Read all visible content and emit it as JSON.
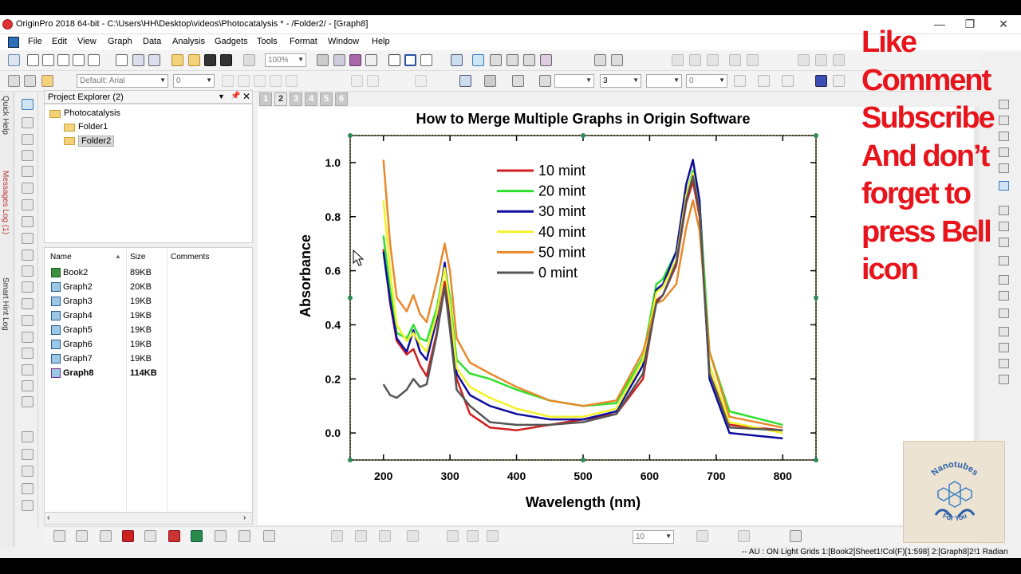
{
  "window": {
    "title": "OriginPro 2018 64-bit - C:\\Users\\HH\\Desktop\\videos\\Photocatalysis * - /Folder2/ - [Graph8]",
    "minimize_glyph": "—",
    "restore_glyph": "❐",
    "close_glyph": "✕"
  },
  "menu": [
    "File",
    "Edit",
    "View",
    "Graph",
    "Data",
    "Analysis",
    "Gadgets",
    "Tools",
    "Format",
    "Window",
    "Help"
  ],
  "toolbar": {
    "zoom_value": "100%",
    "font_name": "Default: Arial",
    "font_size": "0",
    "line_width": "3",
    "line_extra": "0",
    "bottom_size": "10"
  },
  "left_tabs": [
    "Quick Help",
    "Messages Log (1)",
    "Smart Hint Log"
  ],
  "project_explorer": {
    "title": "Project Explorer (2)",
    "root": "Photocatalysis",
    "folders": [
      "Folder1",
      "Folder2"
    ],
    "selected_folder": "Folder2",
    "columns": {
      "name": "Name",
      "size": "Size",
      "comments": "Comments"
    },
    "files": [
      {
        "name": "Book2",
        "size": "89KB",
        "icon": "workbook-icon"
      },
      {
        "name": "Graph2",
        "size": "20KB",
        "icon": "graph-icon"
      },
      {
        "name": "Graph3",
        "size": "19KB",
        "icon": "graph-icon"
      },
      {
        "name": "Graph4",
        "size": "19KB",
        "icon": "graph-icon"
      },
      {
        "name": "Graph5",
        "size": "19KB",
        "icon": "graph-icon"
      },
      {
        "name": "Graph6",
        "size": "19KB",
        "icon": "graph-icon"
      },
      {
        "name": "Graph7",
        "size": "19KB",
        "icon": "graph-icon"
      },
      {
        "name": "Graph8",
        "size": "114KB",
        "icon": "graph-icon",
        "active": true
      }
    ]
  },
  "page_tabs": [
    "1",
    "2",
    "3",
    "4",
    "5",
    "6"
  ],
  "active_page_tab": "2",
  "chart_data": {
    "type": "line",
    "title": "How to Merge Multiple Graphs in Origin Software",
    "xlabel": "Wavelength (nm)",
    "ylabel": "Absorbance",
    "xlim": [
      150,
      850
    ],
    "ylim": [
      -0.1,
      1.1
    ],
    "xticks": [
      200,
      300,
      400,
      500,
      600,
      700,
      800
    ],
    "yticks": [
      0.0,
      0.2,
      0.4,
      0.6,
      0.8,
      1.0
    ],
    "legend_position": "top-center",
    "series": [
      {
        "name": "10 mint",
        "color": "#d21f1f",
        "x": [
          200,
          210,
          220,
          235,
          245,
          255,
          265,
          280,
          292,
          300,
          310,
          330,
          360,
          400,
          450,
          500,
          550,
          590,
          610,
          620,
          640,
          655,
          665,
          675,
          690,
          720,
          800
        ],
        "y": [
          0.68,
          0.48,
          0.34,
          0.29,
          0.31,
          0.25,
          0.21,
          0.37,
          0.56,
          0.42,
          0.2,
          0.07,
          0.02,
          0.01,
          0.03,
          0.05,
          0.07,
          0.2,
          0.49,
          0.51,
          0.62,
          0.85,
          0.93,
          0.8,
          0.22,
          0.03,
          0.01
        ]
      },
      {
        "name": "20 mint",
        "color": "#2ee02e",
        "x": [
          200,
          210,
          220,
          235,
          245,
          255,
          265,
          280,
          292,
          300,
          310,
          330,
          360,
          400,
          450,
          500,
          550,
          590,
          610,
          620,
          640,
          655,
          665,
          675,
          690,
          720,
          800
        ],
        "y": [
          0.73,
          0.53,
          0.37,
          0.35,
          0.4,
          0.35,
          0.34,
          0.46,
          0.62,
          0.5,
          0.27,
          0.22,
          0.2,
          0.16,
          0.12,
          0.1,
          0.11,
          0.28,
          0.55,
          0.57,
          0.67,
          0.88,
          0.97,
          0.85,
          0.3,
          0.08,
          0.03
        ]
      },
      {
        "name": "30 mint",
        "color": "#0d0d9e",
        "x": [
          200,
          210,
          220,
          235,
          245,
          255,
          265,
          280,
          292,
          300,
          310,
          330,
          360,
          400,
          450,
          500,
          550,
          590,
          610,
          620,
          640,
          655,
          665,
          675,
          690,
          720,
          800
        ],
        "y": [
          0.67,
          0.49,
          0.35,
          0.3,
          0.38,
          0.3,
          0.27,
          0.42,
          0.63,
          0.45,
          0.22,
          0.14,
          0.1,
          0.07,
          0.05,
          0.05,
          0.08,
          0.25,
          0.53,
          0.55,
          0.67,
          0.92,
          1.01,
          0.86,
          0.2,
          0.0,
          -0.02
        ]
      },
      {
        "name": "40 mint",
        "color": "#f2f22a",
        "x": [
          200,
          210,
          220,
          235,
          245,
          255,
          265,
          280,
          292,
          300,
          310,
          330,
          360,
          400,
          450,
          500,
          550,
          590,
          610,
          620,
          640,
          655,
          665,
          675,
          690,
          720,
          800
        ],
        "y": [
          0.86,
          0.6,
          0.4,
          0.34,
          0.37,
          0.33,
          0.3,
          0.44,
          0.61,
          0.47,
          0.24,
          0.17,
          0.13,
          0.09,
          0.06,
          0.06,
          0.09,
          0.27,
          0.52,
          0.54,
          0.64,
          0.88,
          0.96,
          0.82,
          0.25,
          0.04,
          0.0
        ]
      },
      {
        "name": "50 mint",
        "color": "#e8892a",
        "x": [
          200,
          210,
          220,
          235,
          245,
          255,
          265,
          280,
          292,
          300,
          310,
          330,
          360,
          400,
          450,
          500,
          550,
          590,
          610,
          620,
          640,
          655,
          665,
          675,
          690,
          720,
          800
        ],
        "y": [
          1.01,
          0.7,
          0.5,
          0.45,
          0.51,
          0.44,
          0.41,
          0.56,
          0.7,
          0.6,
          0.35,
          0.26,
          0.22,
          0.17,
          0.12,
          0.1,
          0.12,
          0.3,
          0.48,
          0.49,
          0.55,
          0.76,
          0.86,
          0.75,
          0.3,
          0.06,
          0.02
        ]
      },
      {
        "name": "0 mint",
        "color": "#555555",
        "x": [
          200,
          210,
          220,
          235,
          245,
          255,
          265,
          280,
          292,
          300,
          310,
          330,
          360,
          400,
          450,
          500,
          550,
          590,
          610,
          620,
          640,
          655,
          665,
          675,
          690,
          720,
          800
        ],
        "y": [
          0.18,
          0.14,
          0.13,
          0.16,
          0.2,
          0.17,
          0.18,
          0.36,
          0.54,
          0.38,
          0.16,
          0.1,
          0.04,
          0.03,
          0.03,
          0.04,
          0.07,
          0.22,
          0.48,
          0.51,
          0.63,
          0.86,
          0.95,
          0.82,
          0.22,
          0.02,
          0.01
        ]
      }
    ]
  },
  "status_bar": "-- AU : ON Light Grids 1:[Book2]Sheet1!Col(F)[1:598] 2:[Graph8]2!1 Radian",
  "promo": {
    "lines": [
      "Like",
      "Comment",
      "Subscribe",
      "And don’t",
      "forget to",
      "press Bell",
      "icon"
    ],
    "color": "#e8141c"
  },
  "logo": {
    "top_text": "Nanotubes",
    "bottom_text": "For You"
  }
}
